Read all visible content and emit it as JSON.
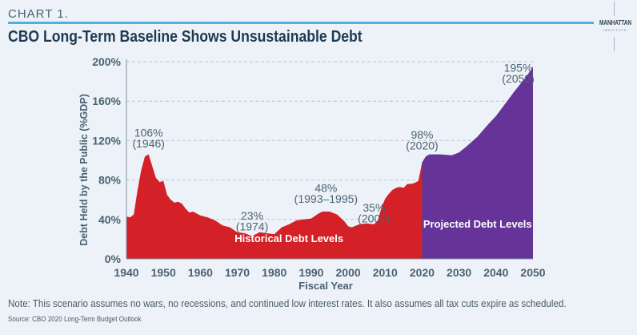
{
  "header": {
    "chart_label": "CHART 1.",
    "logo_main": "MANHATTAN",
    "logo_sub": "INSTITUTE"
  },
  "footer": {
    "note": "Note: This scenario assumes no wars, no recessions, and continued low interest rates. It also assumes all tax cuts expire as scheduled.",
    "source": "Source: CBO 2020 Long-Term Budget Outlook"
  },
  "colors": {
    "historical": "#d42027",
    "projected": "#663399",
    "text": "#4a6272",
    "title": "#1e3a52",
    "rule": "#4cb1df"
  },
  "chart_data": {
    "type": "area",
    "title": "CBO Long-Term Baseline Shows Unsustainable Debt",
    "xlabel": "Fiscal Year",
    "ylabel": "Debt Held by the Public (%GDP)",
    "xlim": [
      1940,
      2050
    ],
    "ylim": [
      0,
      200
    ],
    "xticks": [
      "1940",
      "1950",
      "1960",
      "1970",
      "1980",
      "1990",
      "2000",
      "2010",
      "2020",
      "2030",
      "2040",
      "2050"
    ],
    "yticks": [
      "0%",
      "40%",
      "80%",
      "120%",
      "160%",
      "200%"
    ],
    "grid": "horizontal dashed",
    "series": [
      {
        "name": "Historical Debt Levels",
        "color": "#d42027",
        "x": [
          1940,
          1941,
          1942,
          1943,
          1944,
          1945,
          1946,
          1947,
          1948,
          1949,
          1950,
          1951,
          1952,
          1953,
          1954,
          1955,
          1956,
          1957,
          1958,
          1959,
          1960,
          1962,
          1964,
          1966,
          1968,
          1970,
          1972,
          1974,
          1976,
          1978,
          1980,
          1982,
          1984,
          1986,
          1988,
          1990,
          1992,
          1993,
          1995,
          1997,
          1999,
          2000,
          2001,
          2003,
          2005,
          2007,
          2008,
          2009,
          2010,
          2011,
          2012,
          2013,
          2014,
          2015,
          2016,
          2017,
          2018,
          2019,
          2020
        ],
        "y": [
          43,
          42,
          45,
          70,
          90,
          104,
          106,
          94,
          82,
          78,
          79,
          65,
          60,
          57,
          58,
          56,
          51,
          47,
          48,
          46,
          44,
          42,
          39,
          34,
          32,
          27,
          26,
          23,
          27,
          26,
          25,
          32,
          35,
          39,
          40,
          41,
          46,
          48,
          48,
          45,
          38,
          33,
          32,
          35,
          36,
          35,
          39,
          52,
          61,
          66,
          70,
          72,
          73,
          72,
          76,
          76,
          77,
          79,
          98
        ]
      },
      {
        "name": "Projected Debt Levels",
        "color": "#663399",
        "x": [
          2020,
          2021,
          2022,
          2025,
          2028,
          2030,
          2032,
          2035,
          2038,
          2040,
          2043,
          2045,
          2048,
          2050
        ],
        "y": [
          98,
          104,
          106,
          106,
          105,
          108,
          114,
          124,
          137,
          145,
          160,
          170,
          184,
          195
        ]
      }
    ],
    "annotations": [
      {
        "text": "106%",
        "sub": "(1946)",
        "x": 1946,
        "y": 106
      },
      {
        "text": "23%",
        "sub": "(1974)",
        "x": 1974,
        "y": 23
      },
      {
        "text": "48%",
        "sub": "(1993–1995)",
        "x": 1994,
        "y": 48
      },
      {
        "text": "35%",
        "sub": "(2007)",
        "x": 2007,
        "y": 35
      },
      {
        "text": "98%",
        "sub": "(2020)",
        "x": 2020,
        "y": 98
      },
      {
        "text": "195%",
        "sub": "(2050)",
        "x": 2050,
        "y": 195
      }
    ]
  }
}
